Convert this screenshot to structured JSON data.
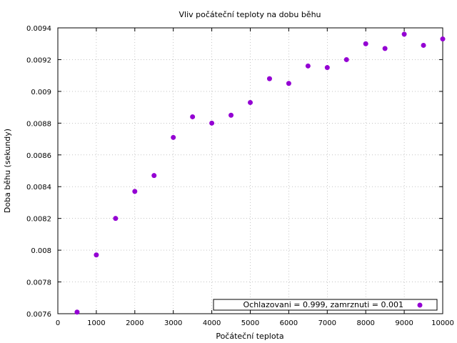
{
  "chart_data": {
    "type": "scatter",
    "title": "Vliv počáteční teploty na dobu běhu",
    "xlabel": "Počáteční teplota",
    "ylabel": "Doba běhu (sekundy)",
    "xlim": [
      0,
      10000
    ],
    "ylim": [
      0.0076,
      0.0094
    ],
    "x_ticks": [
      "0",
      "1000",
      "2000",
      "3000",
      "4000",
      "5000",
      "6000",
      "7000",
      "8000",
      "9000",
      "10000"
    ],
    "y_ticks": [
      "0.0076",
      "0.0078",
      "0.008",
      "0.0082",
      "0.0084",
      "0.0086",
      "0.0088",
      "0.009",
      "0.0092",
      "0.0094"
    ],
    "grid": true,
    "legend_position": "bottom-right",
    "color": "#9400d3",
    "series": [
      {
        "name": "Ochlazovani = 0.999, zamrznuti = 0.001",
        "x": [
          500,
          1000,
          1500,
          2000,
          2500,
          3000,
          3500,
          4000,
          4500,
          5000,
          5500,
          6000,
          6500,
          7000,
          7500,
          8000,
          8500,
          9000,
          9500,
          10000
        ],
        "y": [
          0.00761,
          0.00797,
          0.0082,
          0.00837,
          0.00847,
          0.00871,
          0.00884,
          0.0088,
          0.00885,
          0.00893,
          0.00908,
          0.00905,
          0.00916,
          0.00915,
          0.0092,
          0.0093,
          0.00927,
          0.00936,
          0.00929,
          0.00933
        ]
      }
    ]
  }
}
